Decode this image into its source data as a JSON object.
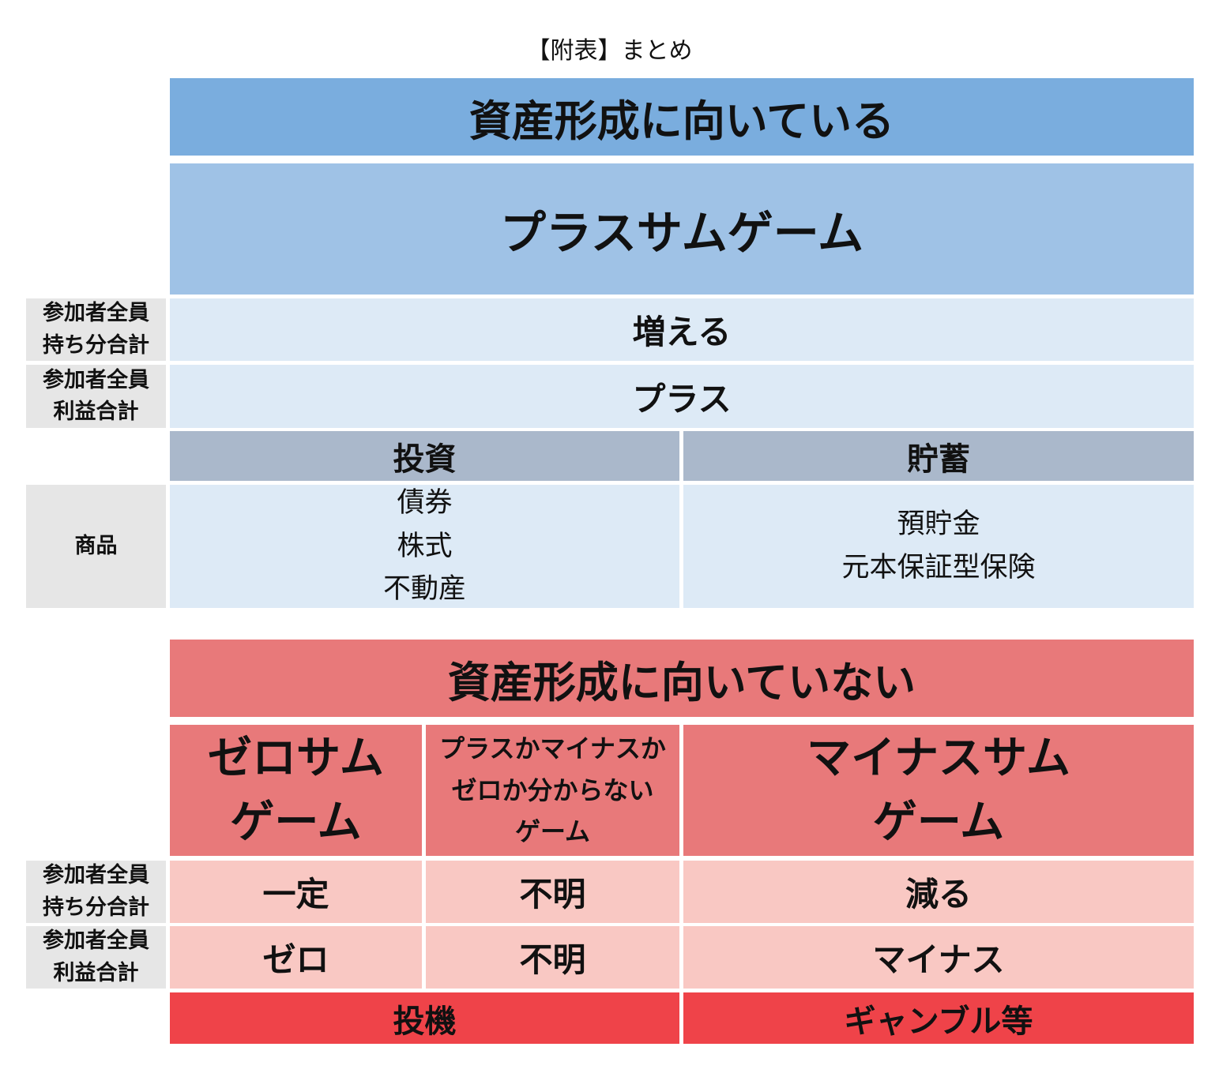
{
  "title": "【附表】まとめ",
  "top": {
    "header": "資産形成に向いている",
    "game": "プラスサムゲーム",
    "rows": [
      {
        "label_line1": "参加者全員",
        "label_line2": "持ち分合計",
        "value": "増える"
      },
      {
        "label_line1": "参加者全員",
        "label_line2": "利益合計",
        "value": "プラス"
      }
    ],
    "categories": [
      "投資",
      "貯蓄"
    ],
    "products_label": "商品",
    "products": [
      [
        "債券",
        "株式",
        "不動産"
      ],
      [
        "預貯金",
        "元本保証型保険"
      ]
    ]
  },
  "bottom": {
    "header": "資産形成に向いていない",
    "games": [
      [
        "ゼロサム",
        "ゲーム"
      ],
      [
        "プラスかマイナスか",
        "ゼロか分からない",
        "ゲーム"
      ],
      [
        "マイナスサム",
        "ゲーム"
      ]
    ],
    "rows": [
      {
        "label_line1": "参加者全員",
        "label_line2": "持ち分合計",
        "values": [
          "一定",
          "不明",
          "減る"
        ]
      },
      {
        "label_line1": "参加者全員",
        "label_line2": "利益合計",
        "values": [
          "ゼロ",
          "不明",
          "マイナス"
        ]
      }
    ],
    "footer": [
      "投機",
      "ギャンブル等"
    ]
  }
}
